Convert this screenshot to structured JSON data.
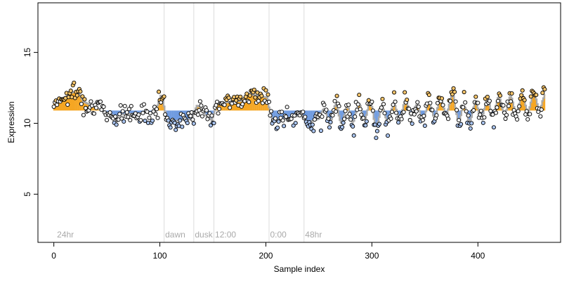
{
  "chart_data": {
    "type": "scatter",
    "xlabel": "Sample index",
    "ylabel": "Expression",
    "xlim": [
      -15,
      478
    ],
    "ylim": [
      1.6,
      18.5
    ],
    "x_ticks": [
      0,
      100,
      200,
      300,
      400
    ],
    "y_ticks": [
      5,
      10,
      15
    ],
    "grid": false,
    "baseline": 10.9,
    "annotations": [
      {
        "label": "24hr",
        "x": 3
      },
      {
        "label": "dawn",
        "x": 105
      },
      {
        "label": "dusk",
        "x": 133
      },
      {
        "label": "12:00",
        "x": 152
      },
      {
        "label": "0:00",
        "x": 204
      },
      {
        "label": "48hr",
        "x": 237
      }
    ],
    "vlines": [
      104,
      132,
      151,
      203,
      236
    ],
    "colors": {
      "above": "#f5a623",
      "below": "#6f9be0",
      "line": "#a9a9a9",
      "vline": "#dcdcdc",
      "point_fill": "#f2f2f2",
      "point_stroke": "#000000"
    },
    "segments": [
      {
        "x0": 0,
        "x1": 15,
        "y0": 11.5,
        "y1": 12.0
      },
      {
        "x0": 16,
        "x1": 25,
        "y0": 12.2,
        "y1": 12.2
      },
      {
        "x0": 26,
        "x1": 60,
        "y0": 11.6,
        "y1": 10.4
      },
      {
        "x0": 61,
        "x1": 98,
        "y0": 10.6,
        "y1": 10.8
      },
      {
        "x0": 99,
        "x1": 104,
        "y0": 12.0,
        "y1": 11.9
      },
      {
        "x0": 105,
        "x1": 132,
        "y0": 10.1,
        "y1": 10.3
      },
      {
        "x0": 133,
        "x1": 140,
        "y0": 11.3,
        "y1": 11.1
      },
      {
        "x0": 141,
        "x1": 151,
        "y0": 10.7,
        "y1": 10.1
      },
      {
        "x0": 152,
        "x1": 180,
        "y0": 11.4,
        "y1": 11.6
      },
      {
        "x0": 181,
        "x1": 203,
        "y0": 12.1,
        "y1": 11.8
      },
      {
        "x0": 204,
        "x1": 236,
        "y0": 10.1,
        "y1": 10.6
      },
      {
        "x0": 237,
        "x1": 270,
        "y0": 10.0,
        "y1": 10.8
      },
      {
        "x0": 271,
        "x1": 300,
        "y0": 10.5,
        "y1": 11.0
      },
      {
        "x0": 301,
        "x1": 340,
        "y0": 10.3,
        "y1": 11.2
      },
      {
        "x0": 341,
        "x1": 380,
        "y0": 10.6,
        "y1": 11.5
      },
      {
        "x0": 381,
        "x1": 420,
        "y0": 10.5,
        "y1": 11.3
      },
      {
        "x0": 421,
        "x1": 463,
        "y0": 11.2,
        "y1": 11.6
      }
    ],
    "osc_start": 252,
    "osc_period": 11,
    "osc_amp": 0.85,
    "noise": 0.33,
    "seed": 7,
    "x_range": [
      0,
      463
    ]
  }
}
